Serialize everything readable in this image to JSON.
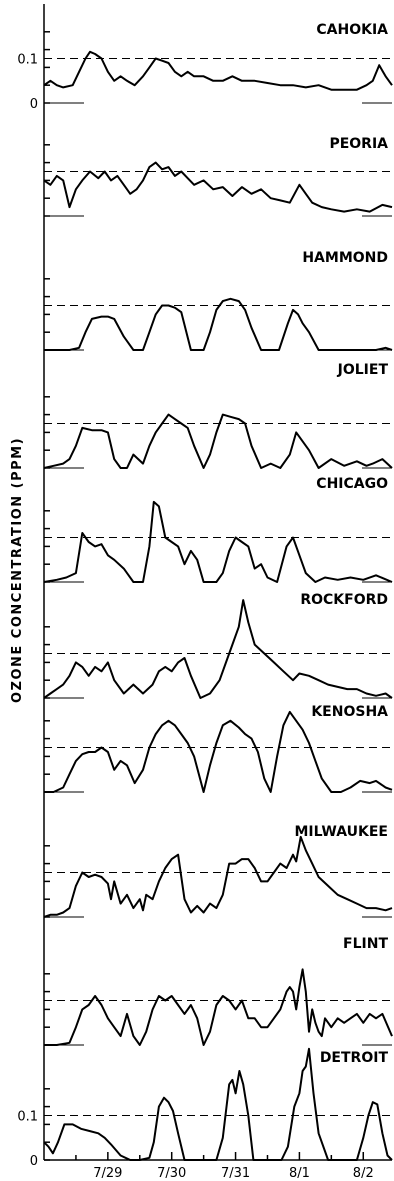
{
  "chart_data": {
    "type": "line",
    "ylabel": "OZONE CONCENTRATION (PPM)",
    "x_tick_labels": [
      "7/29",
      "7/30",
      "7/31",
      "8/1",
      "8/2"
    ],
    "x_ticks": [
      1.0,
      2.0,
      3.0,
      4.0,
      5.0
    ],
    "xlim": [
      0.0,
      5.45
    ],
    "panel_ylim": [
      0,
      0.18
    ],
    "reference_level": 0.1,
    "y_tick_labels": {
      "top": [
        "0.1",
        "0"
      ],
      "bottom": [
        "0.1",
        "0"
      ]
    },
    "grid": false,
    "series": [
      {
        "name": "CAHOKIA",
        "x": [
          0.0,
          0.1,
          0.2,
          0.3,
          0.45,
          0.55,
          0.65,
          0.72,
          0.8,
          0.9,
          1.0,
          1.1,
          1.2,
          1.3,
          1.42,
          1.55,
          1.65,
          1.75,
          1.85,
          1.95,
          2.05,
          2.15,
          2.25,
          2.35,
          2.5,
          2.65,
          2.8,
          2.95,
          3.1,
          3.3,
          3.5,
          3.7,
          3.9,
          4.1,
          4.3,
          4.5,
          4.7,
          4.9,
          5.05,
          5.15,
          5.25,
          5.35,
          5.45
        ],
        "values": [
          0.04,
          0.05,
          0.04,
          0.035,
          0.04,
          0.07,
          0.1,
          0.115,
          0.11,
          0.1,
          0.07,
          0.05,
          0.06,
          0.05,
          0.04,
          0.06,
          0.08,
          0.1,
          0.095,
          0.09,
          0.07,
          0.06,
          0.07,
          0.06,
          0.06,
          0.05,
          0.05,
          0.06,
          0.05,
          0.05,
          0.045,
          0.04,
          0.04,
          0.035,
          0.04,
          0.03,
          0.03,
          0.03,
          0.04,
          0.05,
          0.085,
          0.06,
          0.04
        ]
      },
      {
        "name": "PEORIA",
        "x": [
          0.0,
          0.1,
          0.2,
          0.3,
          0.4,
          0.5,
          0.6,
          0.72,
          0.85,
          0.95,
          1.05,
          1.15,
          1.25,
          1.35,
          1.45,
          1.55,
          1.65,
          1.75,
          1.85,
          1.95,
          2.05,
          2.15,
          2.25,
          2.35,
          2.5,
          2.65,
          2.8,
          2.95,
          3.1,
          3.25,
          3.4,
          3.55,
          3.7,
          3.85,
          4.0,
          4.1,
          4.2,
          4.35,
          4.5,
          4.7,
          4.9,
          5.1,
          5.3,
          5.45
        ],
        "values": [
          0.08,
          0.07,
          0.09,
          0.08,
          0.02,
          0.06,
          0.08,
          0.1,
          0.085,
          0.1,
          0.08,
          0.09,
          0.07,
          0.05,
          0.06,
          0.08,
          0.11,
          0.12,
          0.105,
          0.11,
          0.09,
          0.1,
          0.085,
          0.07,
          0.08,
          0.06,
          0.065,
          0.045,
          0.065,
          0.05,
          0.06,
          0.04,
          0.035,
          0.03,
          0.07,
          0.05,
          0.03,
          0.02,
          0.015,
          0.01,
          0.015,
          0.01,
          0.025,
          0.02
        ]
      },
      {
        "name": "HAMMOND",
        "x": [
          0.0,
          0.2,
          0.4,
          0.55,
          0.65,
          0.75,
          0.9,
          1.0,
          1.1,
          1.25,
          1.4,
          1.55,
          1.65,
          1.75,
          1.85,
          1.95,
          2.05,
          2.15,
          2.3,
          2.5,
          2.6,
          2.7,
          2.8,
          2.92,
          3.05,
          3.15,
          3.25,
          3.4,
          3.55,
          3.68,
          3.82,
          3.9,
          3.98,
          4.05,
          4.15,
          4.3,
          4.45,
          4.6,
          4.8,
          5.0,
          5.2,
          5.35,
          5.45
        ],
        "values": [
          0.0,
          0.0,
          0.0,
          0.005,
          0.04,
          0.07,
          0.075,
          0.075,
          0.07,
          0.03,
          0.0,
          0.0,
          0.04,
          0.08,
          0.1,
          0.1,
          0.095,
          0.085,
          0.0,
          0.0,
          0.04,
          0.09,
          0.11,
          0.115,
          0.11,
          0.09,
          0.05,
          0.0,
          0.0,
          0.0,
          0.06,
          0.09,
          0.08,
          0.06,
          0.04,
          0.0,
          0.0,
          0.0,
          0.0,
          0.0,
          0.0,
          0.005,
          0.0
        ]
      },
      {
        "name": "JOLIET",
        "x": [
          0.0,
          0.15,
          0.3,
          0.4,
          0.5,
          0.6,
          0.75,
          0.9,
          1.0,
          1.1,
          1.2,
          1.3,
          1.4,
          1.55,
          1.65,
          1.75,
          1.85,
          1.95,
          2.05,
          2.15,
          2.25,
          2.35,
          2.5,
          2.6,
          2.7,
          2.8,
          2.92,
          3.05,
          3.15,
          3.25,
          3.4,
          3.55,
          3.7,
          3.85,
          3.95,
          4.05,
          4.15,
          4.3,
          4.5,
          4.7,
          4.9,
          5.05,
          5.15,
          5.3,
          5.45
        ],
        "values": [
          0.0,
          0.005,
          0.01,
          0.02,
          0.05,
          0.09,
          0.085,
          0.085,
          0.08,
          0.02,
          0.0,
          0.0,
          0.03,
          0.01,
          0.05,
          0.08,
          0.1,
          0.12,
          0.11,
          0.1,
          0.09,
          0.05,
          0.0,
          0.03,
          0.08,
          0.12,
          0.115,
          0.11,
          0.1,
          0.05,
          0.0,
          0.01,
          0.0,
          0.03,
          0.08,
          0.06,
          0.04,
          0.0,
          0.02,
          0.005,
          0.015,
          0.005,
          0.01,
          0.02,
          0.0
        ]
      },
      {
        "name": "CHICAGO",
        "x": [
          0.0,
          0.2,
          0.35,
          0.5,
          0.6,
          0.7,
          0.8,
          0.9,
          1.0,
          1.1,
          1.25,
          1.4,
          1.55,
          1.65,
          1.72,
          1.8,
          1.9,
          2.0,
          2.1,
          2.2,
          2.3,
          2.4,
          2.5,
          2.6,
          2.7,
          2.8,
          2.9,
          3.0,
          3.1,
          3.2,
          3.3,
          3.4,
          3.5,
          3.65,
          3.8,
          3.9,
          4.0,
          4.1,
          4.25,
          4.4,
          4.6,
          4.8,
          5.0,
          5.2,
          5.45
        ],
        "values": [
          0.0,
          0.005,
          0.01,
          0.02,
          0.11,
          0.09,
          0.08,
          0.085,
          0.06,
          0.05,
          0.03,
          0.0,
          0.0,
          0.08,
          0.18,
          0.17,
          0.1,
          0.09,
          0.08,
          0.04,
          0.07,
          0.05,
          0.0,
          0.0,
          0.0,
          0.02,
          0.07,
          0.1,
          0.09,
          0.08,
          0.03,
          0.04,
          0.01,
          0.0,
          0.08,
          0.1,
          0.06,
          0.02,
          0.0,
          0.01,
          0.005,
          0.01,
          0.005,
          0.015,
          0.0
        ]
      },
      {
        "name": "ROCKFORD",
        "x": [
          0.0,
          0.1,
          0.2,
          0.3,
          0.4,
          0.5,
          0.6,
          0.7,
          0.8,
          0.9,
          1.0,
          1.1,
          1.25,
          1.4,
          1.55,
          1.7,
          1.8,
          1.9,
          2.0,
          2.1,
          2.2,
          2.3,
          2.45,
          2.6,
          2.75,
          2.85,
          2.95,
          3.05,
          3.12,
          3.2,
          3.3,
          3.45,
          3.6,
          3.75,
          3.9,
          4.0,
          4.15,
          4.3,
          4.45,
          4.6,
          4.75,
          4.9,
          5.05,
          5.2,
          5.35,
          5.45
        ],
        "values": [
          0.0,
          0.01,
          0.02,
          0.03,
          0.05,
          0.08,
          0.07,
          0.05,
          0.07,
          0.06,
          0.08,
          0.04,
          0.01,
          0.03,
          0.01,
          0.03,
          0.06,
          0.07,
          0.06,
          0.08,
          0.09,
          0.05,
          0.0,
          0.01,
          0.04,
          0.08,
          0.12,
          0.16,
          0.22,
          0.17,
          0.12,
          0.1,
          0.08,
          0.06,
          0.04,
          0.055,
          0.05,
          0.04,
          0.03,
          0.025,
          0.02,
          0.02,
          0.01,
          0.005,
          0.01,
          0.0
        ]
      },
      {
        "name": "KENOSHA",
        "x": [
          0.0,
          0.15,
          0.3,
          0.4,
          0.5,
          0.6,
          0.7,
          0.8,
          0.9,
          1.0,
          1.1,
          1.2,
          1.3,
          1.42,
          1.55,
          1.65,
          1.75,
          1.85,
          1.95,
          2.05,
          2.15,
          2.25,
          2.35,
          2.5,
          2.6,
          2.7,
          2.8,
          2.92,
          3.05,
          3.15,
          3.25,
          3.35,
          3.45,
          3.55,
          3.65,
          3.75,
          3.85,
          3.95,
          4.05,
          4.15,
          4.25,
          4.35,
          4.5,
          4.65,
          4.8,
          4.95,
          5.1,
          5.2,
          5.35,
          5.45
        ],
        "values": [
          0.0,
          0.0,
          0.01,
          0.04,
          0.07,
          0.085,
          0.09,
          0.09,
          0.1,
          0.09,
          0.05,
          0.07,
          0.06,
          0.02,
          0.05,
          0.1,
          0.13,
          0.15,
          0.16,
          0.15,
          0.13,
          0.11,
          0.08,
          0.0,
          0.06,
          0.11,
          0.15,
          0.16,
          0.145,
          0.13,
          0.12,
          0.09,
          0.03,
          0.0,
          0.08,
          0.15,
          0.18,
          0.16,
          0.14,
          0.11,
          0.07,
          0.03,
          0.0,
          0.0,
          0.01,
          0.025,
          0.02,
          0.025,
          0.01,
          0.005
        ]
      },
      {
        "name": "MILWAUKEE",
        "x": [
          0.0,
          0.1,
          0.2,
          0.3,
          0.4,
          0.5,
          0.6,
          0.7,
          0.8,
          0.9,
          1.0,
          1.05,
          1.1,
          1.2,
          1.3,
          1.4,
          1.5,
          1.55,
          1.6,
          1.7,
          1.8,
          1.9,
          2.0,
          2.1,
          2.2,
          2.3,
          2.4,
          2.5,
          2.6,
          2.7,
          2.8,
          2.9,
          3.0,
          3.1,
          3.2,
          3.3,
          3.4,
          3.5,
          3.6,
          3.7,
          3.8,
          3.9,
          3.95,
          4.02,
          4.1,
          4.2,
          4.3,
          4.45,
          4.6,
          4.75,
          4.9,
          5.05,
          5.2,
          5.35,
          5.45
        ],
        "values": [
          0.0,
          0.005,
          0.005,
          0.01,
          0.02,
          0.07,
          0.1,
          0.09,
          0.095,
          0.09,
          0.075,
          0.04,
          0.08,
          0.03,
          0.05,
          0.02,
          0.04,
          0.015,
          0.05,
          0.04,
          0.08,
          0.11,
          0.13,
          0.14,
          0.04,
          0.01,
          0.025,
          0.01,
          0.03,
          0.02,
          0.05,
          0.12,
          0.12,
          0.13,
          0.13,
          0.11,
          0.08,
          0.08,
          0.1,
          0.12,
          0.11,
          0.14,
          0.125,
          0.18,
          0.15,
          0.12,
          0.09,
          0.07,
          0.05,
          0.04,
          0.03,
          0.02,
          0.02,
          0.015,
          0.02
        ]
      },
      {
        "name": "FLINT",
        "x": [
          0.0,
          0.2,
          0.4,
          0.5,
          0.6,
          0.7,
          0.8,
          0.9,
          1.0,
          1.1,
          1.2,
          1.3,
          1.4,
          1.5,
          1.6,
          1.7,
          1.8,
          1.9,
          2.0,
          2.1,
          2.2,
          2.3,
          2.4,
          2.5,
          2.6,
          2.7,
          2.8,
          2.9,
          3.0,
          3.1,
          3.2,
          3.3,
          3.4,
          3.5,
          3.6,
          3.7,
          3.8,
          3.85,
          3.9,
          3.95,
          4.0,
          4.05,
          4.1,
          4.15,
          4.2,
          4.25,
          4.3,
          4.35,
          4.4,
          4.5,
          4.6,
          4.7,
          4.8,
          4.9,
          5.0,
          5.1,
          5.2,
          5.3,
          5.45
        ],
        "values": [
          0.0,
          0.0,
          0.005,
          0.04,
          0.08,
          0.09,
          0.11,
          0.09,
          0.06,
          0.04,
          0.02,
          0.07,
          0.02,
          0.0,
          0.03,
          0.08,
          0.11,
          0.1,
          0.11,
          0.09,
          0.07,
          0.09,
          0.06,
          0.0,
          0.03,
          0.09,
          0.11,
          0.1,
          0.08,
          0.1,
          0.06,
          0.06,
          0.04,
          0.04,
          0.06,
          0.08,
          0.12,
          0.13,
          0.12,
          0.08,
          0.13,
          0.17,
          0.12,
          0.03,
          0.08,
          0.05,
          0.03,
          0.02,
          0.06,
          0.04,
          0.06,
          0.05,
          0.06,
          0.07,
          0.05,
          0.07,
          0.06,
          0.07,
          0.02
        ]
      },
      {
        "name": "DETROIT",
        "x": [
          0.0,
          0.07,
          0.14,
          0.22,
          0.32,
          0.45,
          0.58,
          0.72,
          0.85,
          0.95,
          1.05,
          1.2,
          1.35,
          1.5,
          1.65,
          1.72,
          1.8,
          1.88,
          1.95,
          2.02,
          2.1,
          2.2,
          2.4,
          2.55,
          2.7,
          2.8,
          2.9,
          2.95,
          3.0,
          3.06,
          3.12,
          3.2,
          3.28,
          3.36,
          3.45,
          3.6,
          3.72,
          3.82,
          3.92,
          4.0,
          4.05,
          4.1,
          4.15,
          4.22,
          4.3,
          4.45,
          4.6,
          4.75,
          4.9,
          5.0,
          5.08,
          5.15,
          5.22,
          5.3,
          5.38,
          5.45
        ],
        "values": [
          0.04,
          0.03,
          0.015,
          0.04,
          0.08,
          0.08,
          0.07,
          0.065,
          0.06,
          0.05,
          0.035,
          0.01,
          0.0,
          0.0,
          0.005,
          0.04,
          0.12,
          0.14,
          0.13,
          0.11,
          0.06,
          0.0,
          0.0,
          0.0,
          0.0,
          0.05,
          0.17,
          0.18,
          0.15,
          0.2,
          0.17,
          0.1,
          0.0,
          0.0,
          0.0,
          0.0,
          0.0,
          0.03,
          0.12,
          0.15,
          0.2,
          0.21,
          0.25,
          0.15,
          0.06,
          0.0,
          0.0,
          0.0,
          0.0,
          0.05,
          0.1,
          0.13,
          0.125,
          0.06,
          0.01,
          0.0
        ]
      }
    ]
  }
}
